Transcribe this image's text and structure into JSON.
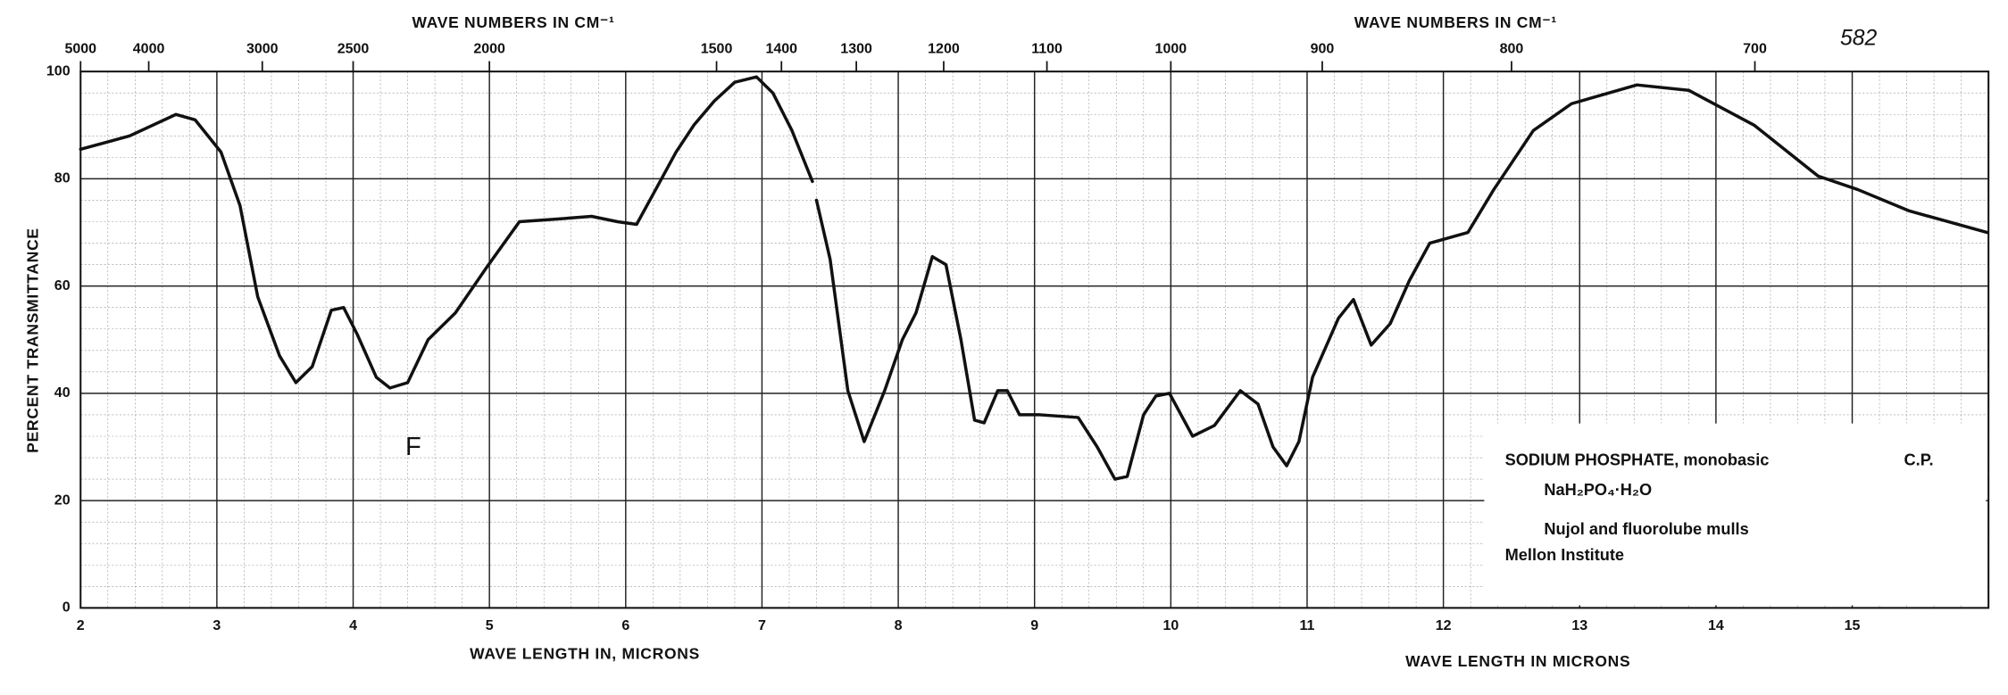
{
  "chart_data": {
    "type": "line",
    "top_axis_label": "WAVE NUMBERS IN CM⁻¹",
    "top_axis_label_right": "WAVE NUMBERS IN CM⁻¹",
    "page_number": "582",
    "ylabel": "PERCENT TRANSMITTANCE",
    "xlabel": "WAVE LENGTH IN, MICRONS",
    "xlabel_right": "WAVE LENGTH IN MICRONS",
    "annotation": "F",
    "legend_text": {
      "compound": "SODIUM PHOSPHATE, monobasic",
      "grade": "C.P.",
      "formula": "NaH₂PO₄·H₂O",
      "method": "Nujol and fluorolube mulls",
      "source": "Mellon Institute"
    },
    "x": [
      2.0,
      2.36,
      2.7,
      2.84,
      3.03,
      3.17,
      3.3,
      3.46,
      3.58,
      3.7,
      3.84,
      3.93,
      4.03,
      4.17,
      4.27,
      4.4,
      4.55,
      4.75,
      4.98,
      5.22,
      5.5,
      5.75,
      5.94,
      6.08,
      6.22,
      6.37,
      6.5,
      6.65,
      6.8,
      6.96,
      7.08,
      7.22,
      7.37,
      7.385,
      7.4,
      7.5,
      7.63,
      7.75,
      7.9,
      8.03,
      8.13,
      8.25,
      8.35,
      8.46,
      8.56,
      8.63,
      8.73,
      8.8,
      8.89,
      9.04,
      9.32,
      9.46,
      9.59,
      9.68,
      9.8,
      9.89,
      9.99,
      10.16,
      10.32,
      10.51,
      10.64,
      10.75,
      10.85,
      10.94,
      11.04,
      11.23,
      11.34,
      11.47,
      11.61,
      11.75,
      11.9,
      12.18,
      12.37,
      12.66,
      12.94,
      13.42,
      13.8,
      14.28,
      14.75,
      15.04,
      15.42,
      15.99
    ],
    "values": [
      85.5,
      88,
      92,
      91,
      85,
      75,
      58,
      47,
      42,
      45,
      55.5,
      56,
      51,
      43,
      41,
      42,
      50,
      55,
      63.5,
      72,
      72.5,
      73,
      72,
      71.5,
      78,
      85,
      90,
      94.5,
      98,
      99,
      96,
      89,
      79.5,
      null,
      76,
      65,
      40.5,
      31,
      40.5,
      50,
      55,
      65.5,
      64,
      50,
      35,
      34.5,
      40.5,
      40.5,
      36,
      36,
      35.5,
      30,
      24,
      24.5,
      36,
      39.5,
      40,
      32,
      34,
      40.5,
      38,
      30,
      26.5,
      31,
      43,
      54,
      57.5,
      49,
      53,
      61,
      68,
      70,
      78,
      89,
      94,
      97.5,
      96.5,
      90,
      80.5,
      78,
      74,
      70
    ],
    "color": "#111111",
    "xlim": [
      2,
      16
    ],
    "xticks": [
      2,
      3,
      4,
      5,
      6,
      7,
      8,
      9,
      10,
      11,
      12,
      13,
      14,
      15
    ],
    "x2ticks": [
      5000,
      4000,
      3000,
      2500,
      2000,
      1500,
      1400,
      1300,
      1200,
      1100,
      1000,
      900,
      800,
      700
    ],
    "ylim": [
      0,
      100
    ],
    "yticks": [
      0,
      20,
      40,
      60,
      80,
      100
    ],
    "grid": true
  }
}
